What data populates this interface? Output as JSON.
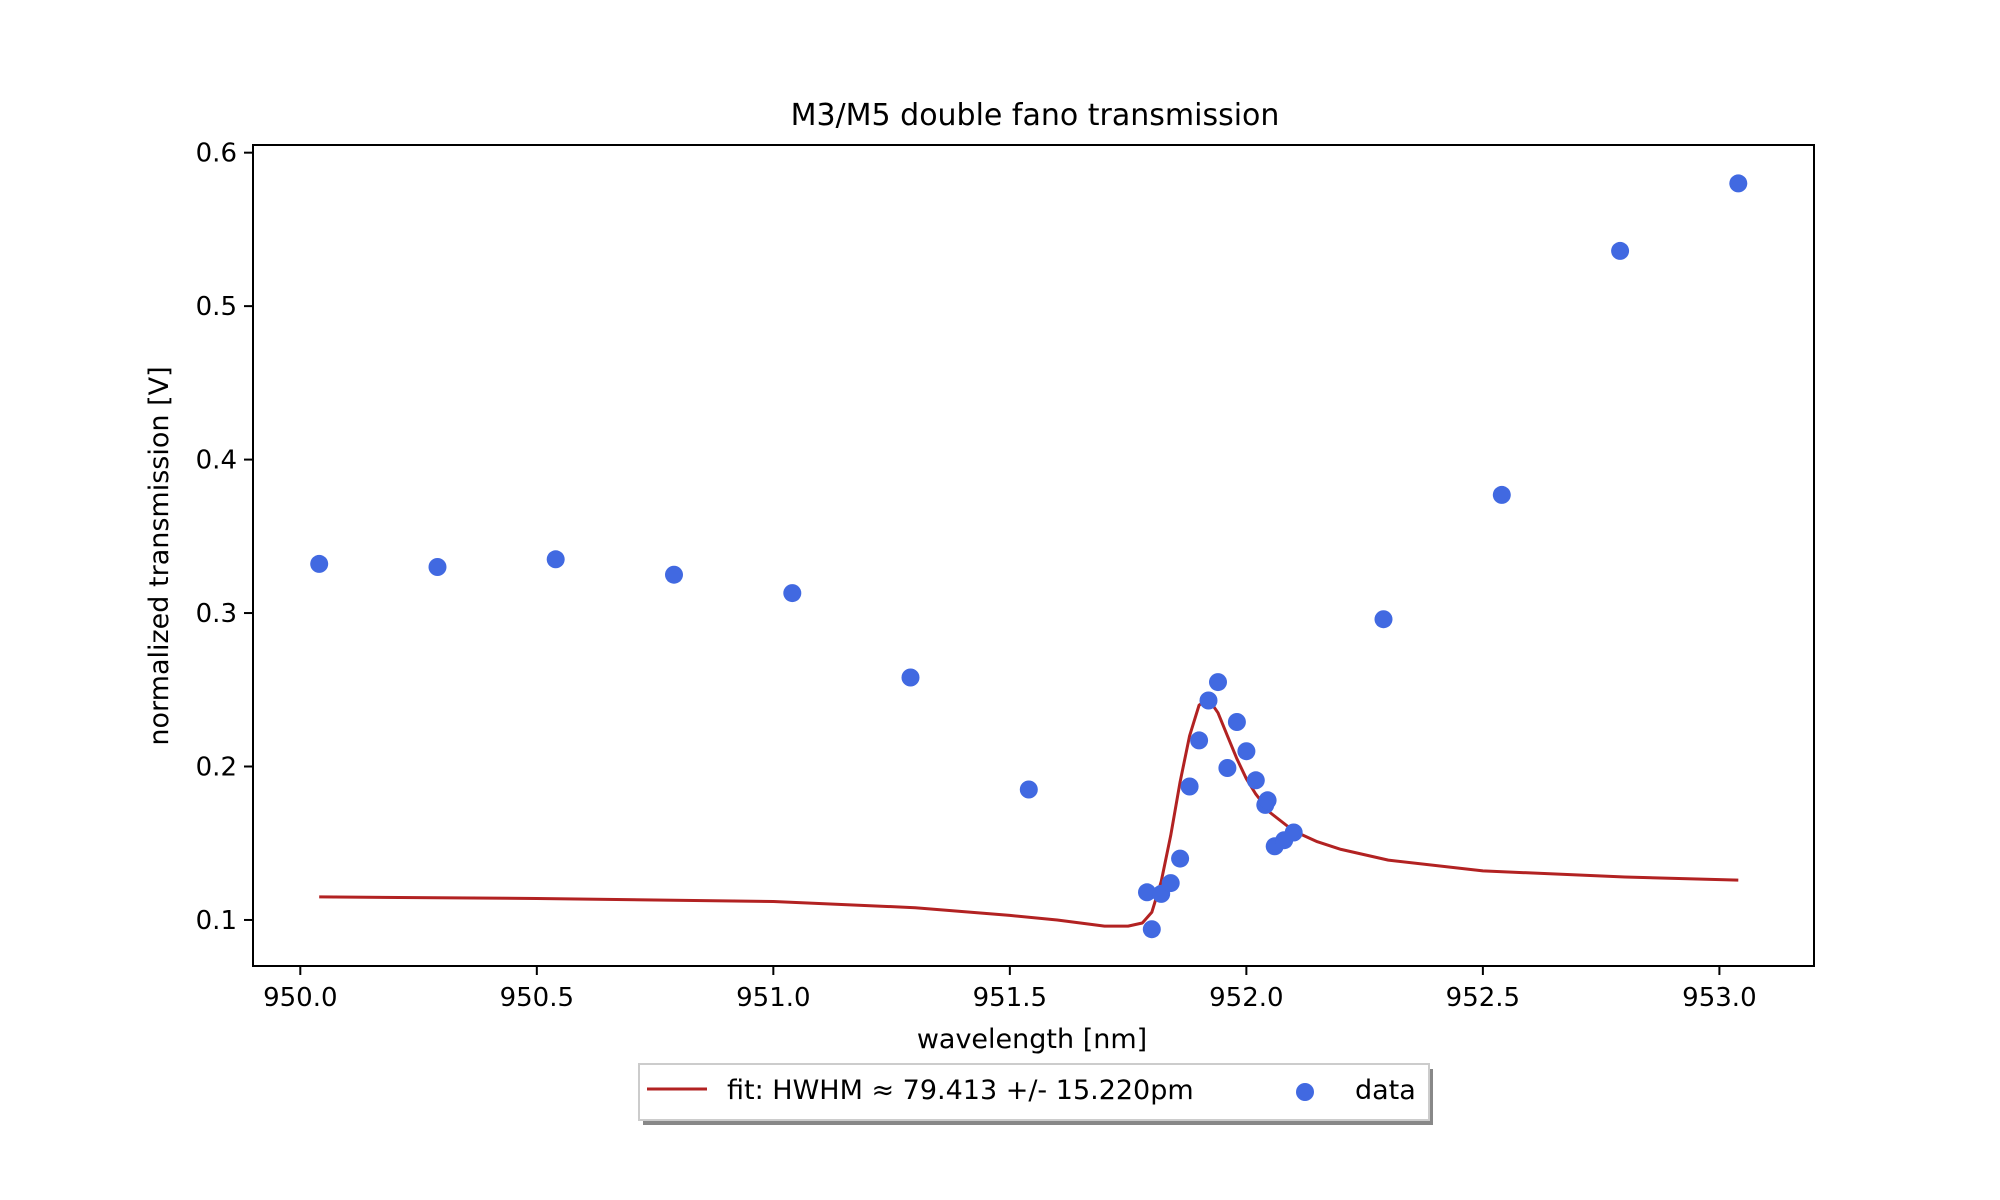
{
  "chart_data": {
    "type": "scatter",
    "title": "M3/M5 double fano transmission",
    "xlabel": "wavelength [nm]",
    "ylabel": "normalized transmission [V]",
    "xlim": [
      949.9,
      953.2
    ],
    "ylim": [
      0.07,
      0.605
    ],
    "xticks": [
      950.0,
      950.5,
      951.0,
      951.5,
      952.0,
      952.5,
      953.0
    ],
    "xtick_labels": [
      "950.0",
      "950.5",
      "951.0",
      "951.5",
      "952.0",
      "952.5",
      "953.0"
    ],
    "yticks": [
      0.1,
      0.2,
      0.3,
      0.4,
      0.5,
      0.6
    ],
    "ytick_labels": [
      "0.1",
      "0.2",
      "0.3",
      "0.4",
      "0.5",
      "0.6"
    ],
    "grid": false,
    "legend_position": "below-center",
    "series": [
      {
        "name": "fit: HWHM ≈ 79.413 +/- 15.220pm",
        "kind": "line",
        "color": "#b22222",
        "x": [
          950.04,
          950.5,
          951.0,
          951.3,
          951.5,
          951.6,
          951.7,
          951.75,
          951.78,
          951.8,
          951.82,
          951.84,
          951.86,
          951.88,
          951.9,
          951.92,
          951.94,
          951.96,
          951.98,
          952.0,
          952.02,
          952.05,
          952.1,
          952.15,
          952.2,
          952.3,
          952.5,
          952.8,
          953.04
        ],
        "y": [
          0.115,
          0.114,
          0.112,
          0.108,
          0.103,
          0.1,
          0.096,
          0.096,
          0.098,
          0.105,
          0.125,
          0.155,
          0.19,
          0.22,
          0.24,
          0.244,
          0.235,
          0.22,
          0.205,
          0.192,
          0.182,
          0.17,
          0.158,
          0.151,
          0.146,
          0.139,
          0.132,
          0.128,
          0.126
        ]
      },
      {
        "name": "data",
        "kind": "scatter",
        "color": "#4169e1",
        "x": [
          950.04,
          950.29,
          950.54,
          950.79,
          951.04,
          951.29,
          951.54,
          951.79,
          951.8,
          951.82,
          951.84,
          951.86,
          951.88,
          951.9,
          951.92,
          951.94,
          951.96,
          951.98,
          952.0,
          952.02,
          952.04,
          952.045,
          952.06,
          952.08,
          952.1,
          952.29,
          952.54,
          952.79,
          953.04
        ],
        "y": [
          0.332,
          0.33,
          0.335,
          0.325,
          0.313,
          0.258,
          0.185,
          0.118,
          0.094,
          0.117,
          0.124,
          0.14,
          0.187,
          0.217,
          0.243,
          0.255,
          0.199,
          0.229,
          0.21,
          0.191,
          0.175,
          0.178,
          0.148,
          0.152,
          0.157,
          0.296,
          0.377,
          0.536,
          0.58
        ]
      }
    ]
  }
}
